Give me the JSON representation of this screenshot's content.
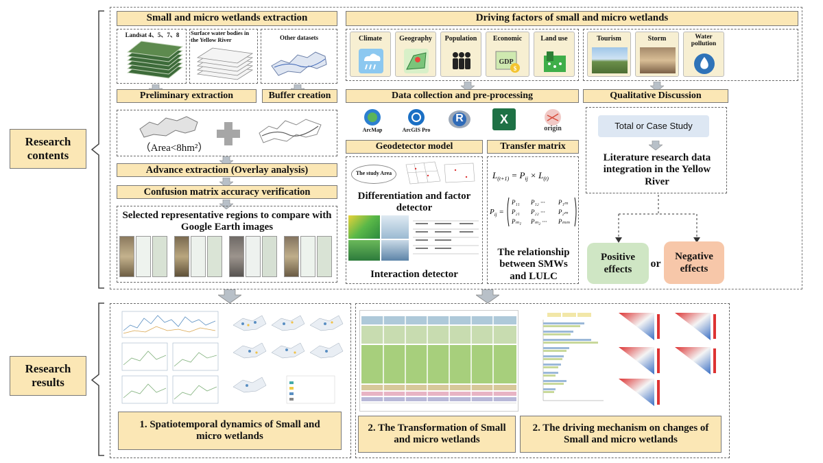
{
  "left": {
    "research_contents": "Research contents",
    "research_results": "Research results"
  },
  "extraction": {
    "title": "Small and micro wetlands extraction",
    "landsat": "Landsat 4、5、7、8",
    "surface_water": "Surface water bodies in the Yellow River",
    "other": "Other datasets",
    "preliminary": "Preliminary  extraction",
    "buffer": "Buffer creation",
    "area": "（Area<8hm²）",
    "advance": "Advance extraction (Overlay analysis)",
    "confusion": "Confusion matrix accuracy verification",
    "selected": "Selected representative regions to compare with Google Earth images"
  },
  "driving": {
    "title": "Driving factors  of  small and micro wetlands",
    "factors": [
      "Climate",
      "Geography",
      "Population",
      "Economic",
      "Land use"
    ],
    "qual_factors": [
      "Tourism",
      "Storm",
      "Water pollution"
    ],
    "gdp_icon_text": "GDP",
    "data_collection": "Data collection and pre-processing",
    "software": [
      "ArcMap",
      "ArcGIS Pro",
      "R",
      "X",
      "origin"
    ],
    "qualitative": "Qualitative  Discussion",
    "geodetector": "Geodetector model",
    "transfer": "Transfer matrix",
    "study_area": "The study Area",
    "diff_factor": "Differentiation and factor detector",
    "interaction": "Interaction detector",
    "relationship": "The relationship between SMWs and LULC",
    "total_case": "Total or Case Study",
    "literature": "Literature research data integration in the Yellow River",
    "positive": "Positive effects",
    "or": "or",
    "negative": "Negative effects"
  },
  "results": {
    "r1": "1. Spatiotemporal dynamics of Small and micro wetlands",
    "r2": "2. The Transformation of Small and micro wetlands",
    "r3": "2. The driving mechanism on changes of Small and micro wetlands"
  },
  "colors": {
    "box_fill": "#fbe7b5",
    "positive": "#cfe6c4",
    "negative": "#f7c7a9",
    "arrow": "#9aa4ad"
  }
}
